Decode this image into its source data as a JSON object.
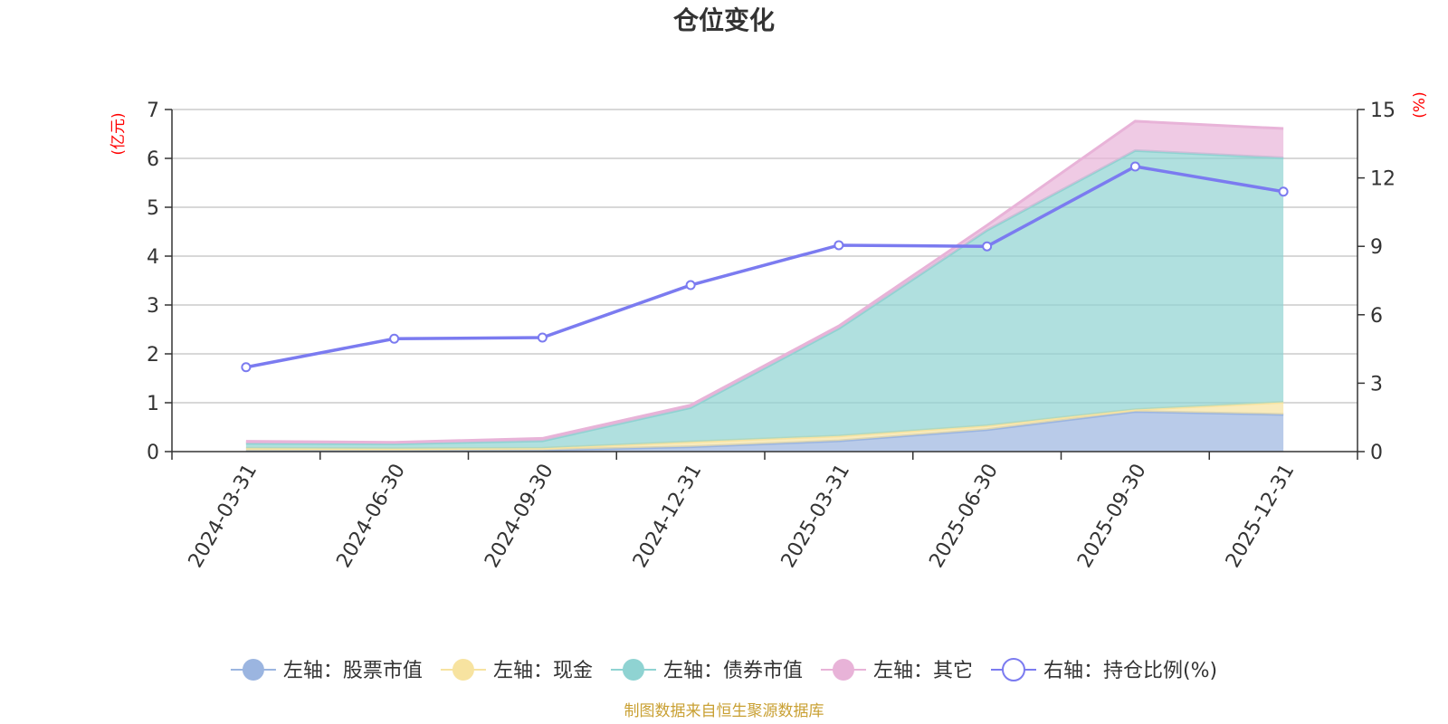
{
  "chart_data": {
    "type": "area",
    "title": "仓位变化",
    "categories": [
      "2024-03-31",
      "2024-06-30",
      "2024-09-30",
      "2024-12-31",
      "2025-03-31",
      "2025-06-30",
      "2025-09-30",
      "2025-12-31"
    ],
    "left_axis": {
      "unit": "(亿元)",
      "ylim": [
        0,
        7
      ],
      "ticks": [
        0,
        1,
        2,
        3,
        4,
        5,
        6,
        7
      ]
    },
    "right_axis": {
      "unit": "(%)",
      "ylim": [
        0,
        15
      ],
      "ticks": [
        0,
        3,
        6,
        9,
        12,
        15
      ]
    },
    "stacked_series": [
      {
        "name": "左轴：股票市值",
        "color": "#9bb5e0",
        "values": [
          0.02,
          0.02,
          0.03,
          0.1,
          0.22,
          0.45,
          0.82,
          0.76
        ]
      },
      {
        "name": "左轴：现金",
        "color": "#f7e3a0",
        "values": [
          0.05,
          0.04,
          0.04,
          0.1,
          0.1,
          0.08,
          0.04,
          0.25
        ]
      },
      {
        "name": "左轴：债券市值",
        "color": "#8fd3d2",
        "values": [
          0.1,
          0.1,
          0.15,
          0.7,
          2.2,
          4.0,
          5.3,
          5.0
        ]
      },
      {
        "name": "左轴：其它",
        "color": "#e8b3d8",
        "values": [
          0.04,
          0.03,
          0.05,
          0.05,
          0.05,
          0.1,
          0.6,
          0.6
        ]
      }
    ],
    "line_series": {
      "name": "右轴：持仓比例(%)",
      "color": "#7b7bf0",
      "values": [
        3.7,
        4.95,
        5.0,
        7.3,
        9.05,
        9.0,
        12.5,
        11.4
      ]
    }
  },
  "source_note": "制图数据来自恒生聚源数据库"
}
